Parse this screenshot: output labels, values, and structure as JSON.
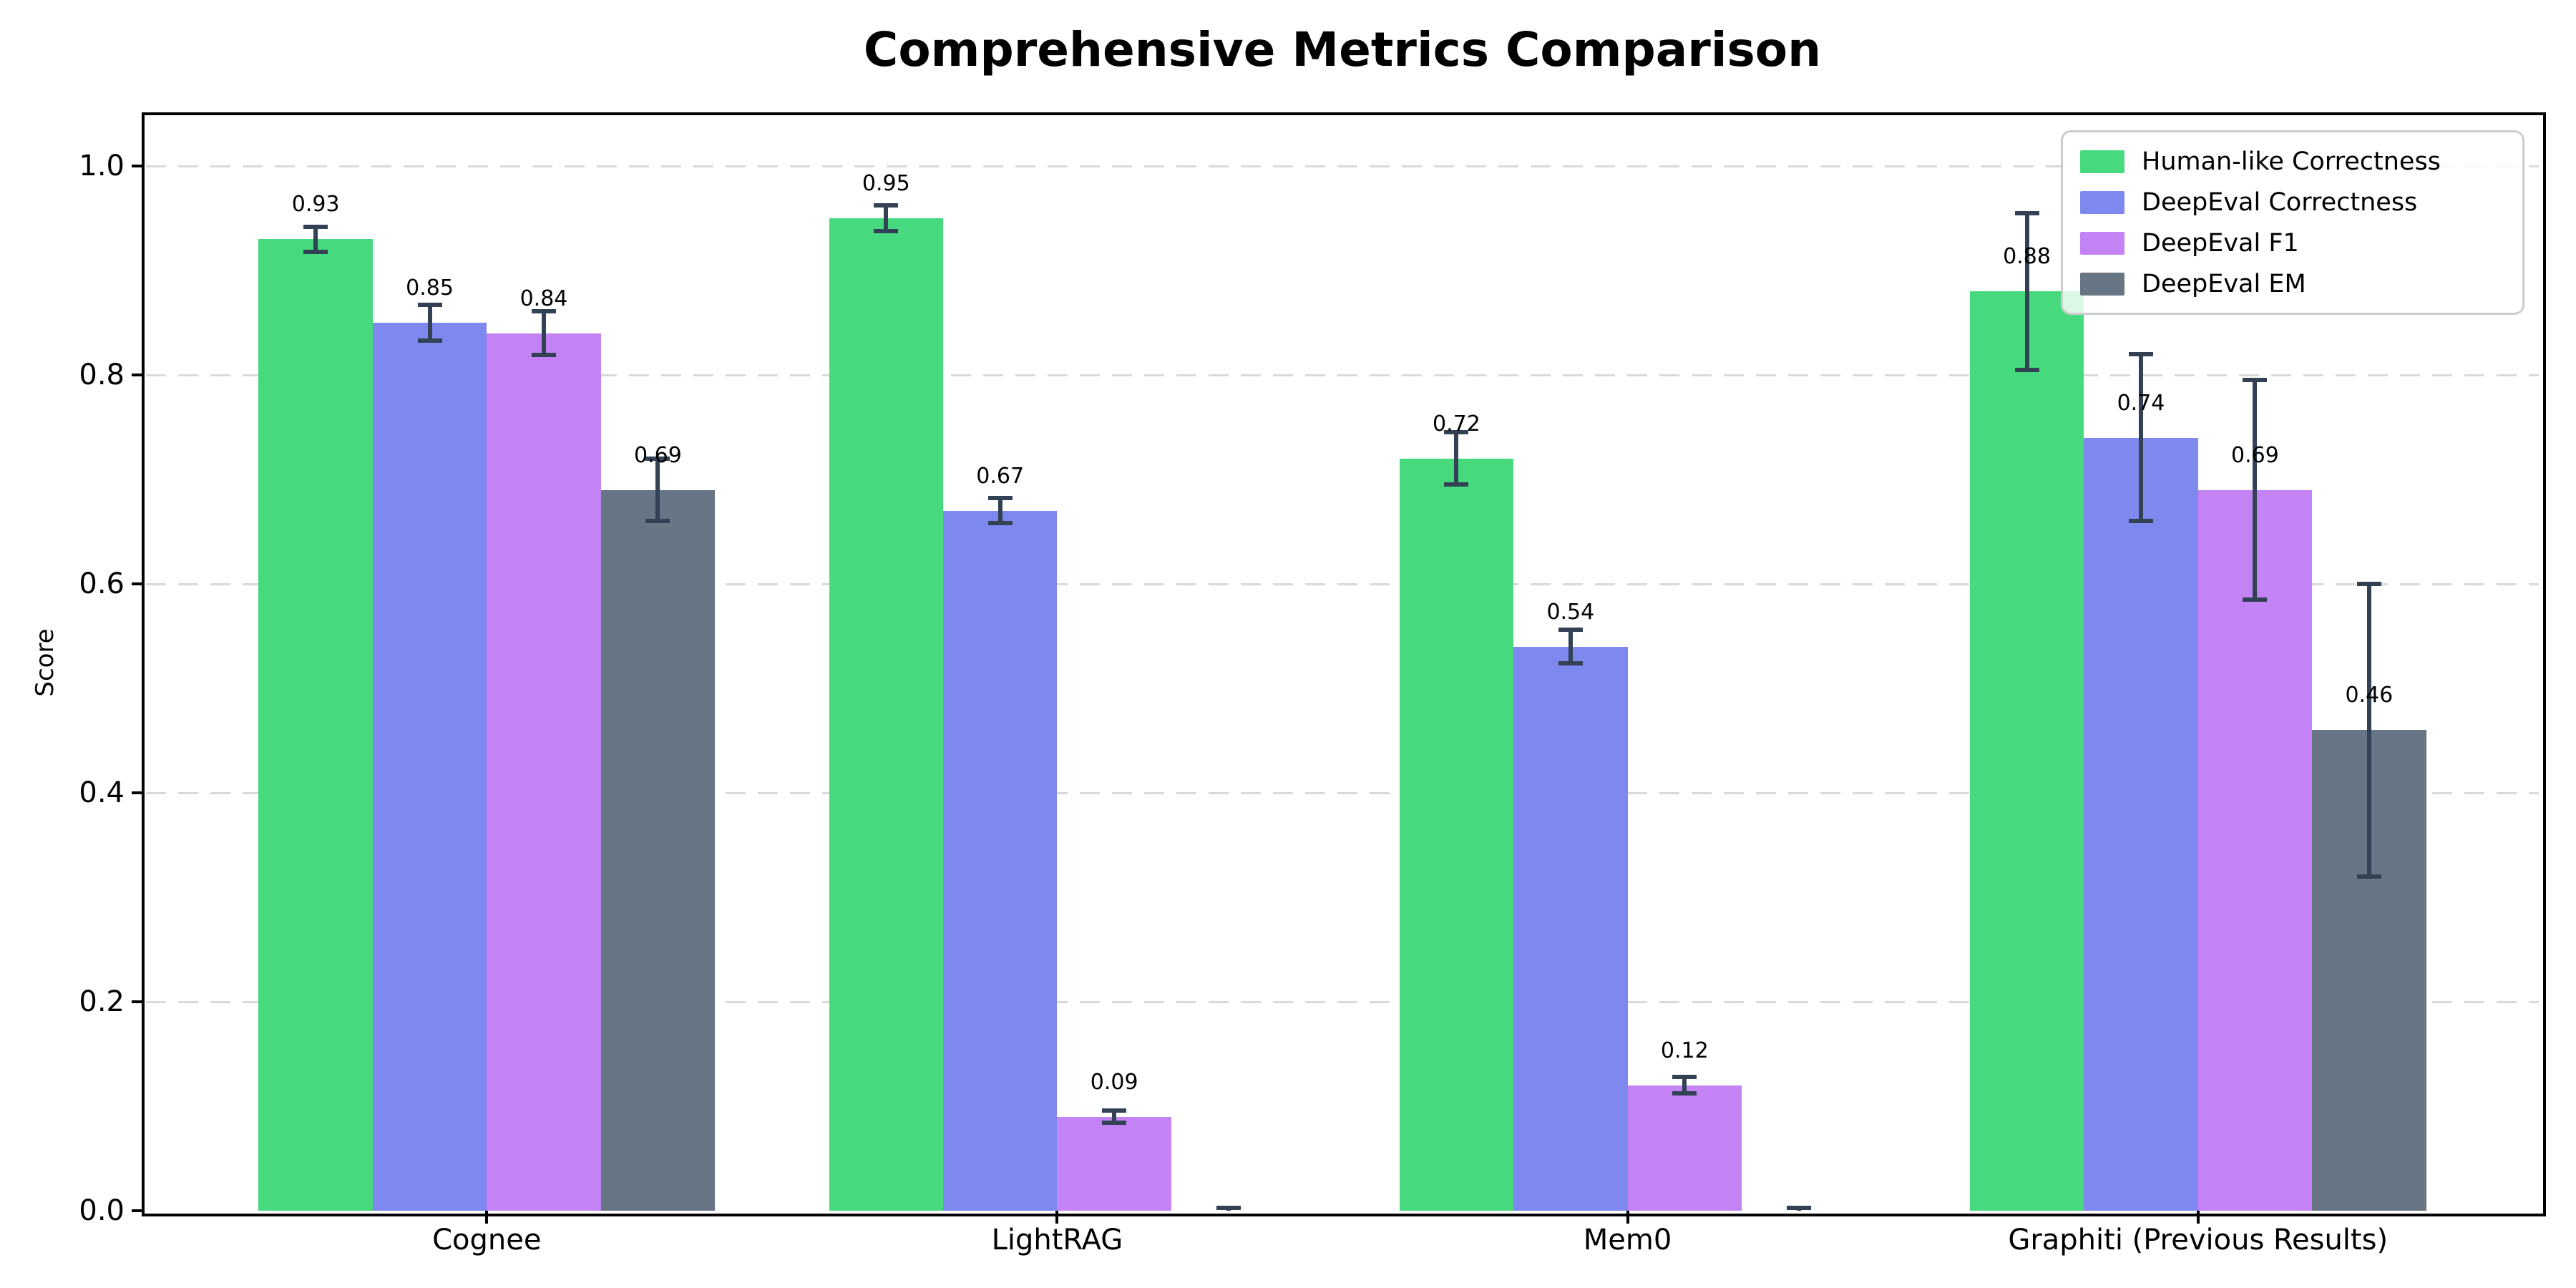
{
  "title": "Comprehensive Metrics Comparison",
  "y_axis": {
    "label": "Score",
    "tick_labels": [
      "0.0",
      "0.2",
      "0.4",
      "0.6",
      "0.8",
      "1.0"
    ]
  },
  "chart_data": {
    "type": "bar",
    "title": "Comprehensive Metrics Comparison",
    "xlabel": "",
    "ylabel": "Score",
    "categories": [
      "Cognee",
      "LightRAG",
      "Mem0",
      "Graphiti (Previous Results)"
    ],
    "series": [
      {
        "name": "Human-like Correctness",
        "color": "#46d97e",
        "values": [
          0.93,
          0.95,
          0.72,
          0.88
        ],
        "errors": [
          0.012,
          0.012,
          0.025,
          0.075
        ],
        "labels": [
          "0.93",
          "0.95",
          "0.72",
          "0.88"
        ]
      },
      {
        "name": "DeepEval Correctness",
        "color": "#7e88ef",
        "values": [
          0.85,
          0.67,
          0.54,
          0.74
        ],
        "errors": [
          0.017,
          0.012,
          0.016,
          0.08
        ],
        "labels": [
          "0.85",
          "0.67",
          "0.54",
          "0.74"
        ]
      },
      {
        "name": "DeepEval F1",
        "color": "#c383f4",
        "values": [
          0.84,
          0.09,
          0.12,
          0.69
        ],
        "errors": [
          0.021,
          0.006,
          0.008,
          0.105
        ],
        "labels": [
          "0.84",
          "0.09",
          "0.12",
          "0.69"
        ]
      },
      {
        "name": "DeepEval EM",
        "color": "#687585",
        "values": [
          0.69,
          0.0,
          0.0,
          0.46
        ],
        "errors": [
          0.03,
          0.003,
          0.003,
          0.14
        ],
        "labels": [
          "0.69",
          "",
          "",
          "0.46"
        ]
      }
    ],
    "yticks": [
      0.0,
      0.2,
      0.4,
      0.6,
      0.8,
      1.0
    ],
    "ytick_labels": [
      "0.0",
      "0.2",
      "0.4",
      "0.6",
      "0.8",
      "1.0"
    ],
    "ylim": [
      0,
      1.05
    ],
    "grid": "horizontal-dashed",
    "gridline_color": "#d9d9d9",
    "legend_position": "upper-right",
    "error_bar_color": "#334155",
    "axis_color": "#000000",
    "background_color": "#ffffff"
  }
}
